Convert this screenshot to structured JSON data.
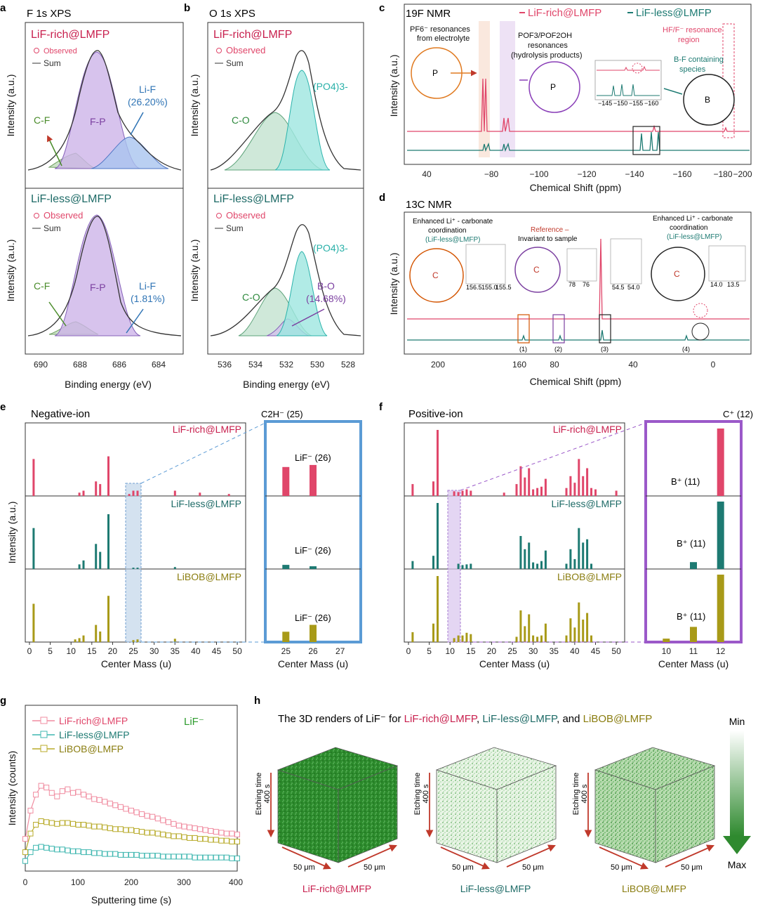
{
  "panels": {
    "a": {
      "letter": "a",
      "title": "F 1s XPS",
      "xlabel": "Binding energy (eV)",
      "ylabel": "Intensity (a.u.)",
      "ticks": [
        "690",
        "688",
        "686",
        "684"
      ]
    },
    "b": {
      "letter": "b",
      "title": "O 1s XPS",
      "xlabel": "Binding energy (eV)",
      "ylabel": "Intensity (a.u.)",
      "ticks": [
        "536",
        "534",
        "532",
        "530",
        "528"
      ]
    },
    "c": {
      "letter": "c",
      "title": "19F NMR",
      "xlabel": "Chemical Shift (ppm)",
      "ylabel": "Intensity (a.u.)",
      "ticks": [
        "40",
        "−80",
        "−100",
        "−120",
        "−140",
        "−160",
        "−180",
        "−200"
      ]
    },
    "d": {
      "letter": "d",
      "title": "13C NMR",
      "xlabel": "Chemical Shift (ppm)",
      "ylabel": "Intensity (a.u.)",
      "ticks": [
        "200",
        "160",
        "80",
        "40",
        "0"
      ]
    },
    "e": {
      "letter": "e",
      "title": "Negative-ion",
      "xlabel": "Center Mass (u)",
      "ylabel": "Intensity (a.u.)",
      "ticks": [
        "0",
        "5",
        "10",
        "15",
        "20",
        "25",
        "30",
        "35",
        "40",
        "45",
        "50"
      ],
      "zoom_ticks": [
        "25",
        "26",
        "27"
      ]
    },
    "f": {
      "letter": "f",
      "title": "Positive-ion",
      "xlabel": "Center Mass (u)",
      "ylabel": "",
      "ticks": [
        "0",
        "5",
        "10",
        "15",
        "20",
        "25",
        "30",
        "35",
        "40",
        "45",
        "50"
      ],
      "zoom_ticks": [
        "10",
        "11",
        "12"
      ]
    },
    "g": {
      "letter": "g",
      "xlabel": "Sputtering time (s)",
      "ylabel": "Intensity (counts)",
      "ticks": [
        "0",
        "100",
        "200",
        "300",
        "400"
      ],
      "tag": "LiF⁻"
    },
    "h": {
      "letter": "h",
      "title_prefix": "The 3D renders of LiF⁻ for ",
      "sep1": ", ",
      "sep2": ", and ",
      "etching": "Etching time",
      "etch_time": "400 s",
      "size": "50 μm",
      "min": "Min",
      "max": "Max"
    }
  },
  "samples": {
    "rich": "LiF-rich@LMFP",
    "less": "LiF-less@LMFP",
    "bob": "LiBOB@LMFP"
  },
  "legend": {
    "observed": "Observed",
    "sum": "Sum"
  },
  "colors": {
    "rich": "#e0466a",
    "less": "#1d7a72",
    "bob": "#a89a18",
    "violet": "#7b3fa0",
    "blue": "#2f74b5",
    "green": "#4a8c2a",
    "zoomE": "#5b9bd5",
    "zoomF": "#9b59c9"
  },
  "xps_labels": {
    "cf": "C-F",
    "fp": "F-P",
    "lif": "Li-F",
    "lif_rich": "(26.20%)",
    "lif_less": "(1.81%)",
    "co": "C-O",
    "po4": "(PO4)3-",
    "bo": "B-O",
    "bo_val": "(14.68%)"
  },
  "nmr_f": {
    "pf6": "PF6⁻ resonances",
    "pf6b": "from electrolyte",
    "pof": "POF3/POF2OH",
    "pofb": "resonances",
    "pofc": "(hydrolysis products)",
    "hf": "HF/F⁻ resonance",
    "hfb": "region",
    "bf": "B-F containing",
    "bfb": "species",
    "inset_ticks": [
      "−145",
      "−150",
      "−155",
      "−160"
    ]
  },
  "nmr_c": {
    "enh1": "Enhanced Li⁺ - carbonate",
    "enh2": "coordination",
    "enh3": "(LiF-less@LMFP)",
    "ref1": "Reference –",
    "ref2": "Invariant to sample",
    "p1": "(1)",
    "p2": "(2)",
    "p3": "(3)",
    "p4": "(4)",
    "ins1": [
      "156.5",
      "155.0",
      "155.5"
    ],
    "ins2": [
      "78",
      "76"
    ],
    "ins3": [
      "54.5",
      "54.0"
    ],
    "ins4": [
      "14.0",
      "13.5"
    ]
  },
  "tof": {
    "c2h": "C2H⁻ (25)",
    "lif26": "LiF⁻ (26)",
    "cplus": "C⁺ (12)",
    "bplus": "B⁺ (11)"
  },
  "chart_data": [
    {
      "panel": "e",
      "type": "bar",
      "title": "Negative-ion",
      "xlabel": "Center Mass (u)",
      "ylabel": "Intensity (a.u.)",
      "xlim": [
        0,
        51
      ],
      "series": [
        {
          "name": "LiF-rich@LMFP",
          "x": [
            1,
            12,
            13,
            16,
            17,
            19,
            24,
            25,
            26,
            35,
            41,
            48
          ],
          "values": [
            0.56,
            0.05,
            0.08,
            0.22,
            0.18,
            0.6,
            0.03,
            0.08,
            0.08,
            0.08,
            0.05,
            0.03
          ]
        },
        {
          "name": "LiF-less@LMFP",
          "x": [
            1,
            12,
            13,
            16,
            17,
            19,
            25,
            26,
            35
          ],
          "values": [
            0.62,
            0.07,
            0.13,
            0.38,
            0.26,
            0.83,
            0.02,
            0.02,
            0.03
          ]
        },
        {
          "name": "LiBOB@LMFP",
          "x": [
            1,
            11,
            12,
            13,
            16,
            17,
            19,
            25,
            26,
            35
          ],
          "values": [
            0.58,
            0.04,
            0.06,
            0.1,
            0.26,
            0.16,
            0.7,
            0.03,
            0.04,
            0.05
          ]
        }
      ]
    },
    {
      "panel": "e-zoom",
      "type": "bar",
      "categories": [
        "25",
        "26"
      ],
      "series": [
        {
          "name": "LiF-rich@LMFP",
          "values": [
            0.42,
            0.45
          ]
        },
        {
          "name": "LiF-less@LMFP",
          "values": [
            0.06,
            0.04
          ]
        },
        {
          "name": "LiBOB@LMFP",
          "values": [
            0.15,
            0.25
          ]
        }
      ]
    },
    {
      "panel": "f",
      "type": "bar",
      "title": "Positive-ion",
      "xlabel": "Center Mass (u)",
      "xlim": [
        0,
        51
      ],
      "series": [
        {
          "name": "LiF-rich@LMFP",
          "x": [
            1,
            6,
            7,
            11,
            12,
            13,
            14,
            15,
            23,
            26,
            27,
            28,
            29,
            30,
            31,
            32,
            33,
            38,
            39,
            40,
            41,
            42,
            43,
            44,
            45,
            50
          ],
          "values": [
            0.18,
            0.22,
            1.0,
            0.07,
            0.06,
            0.08,
            0.1,
            0.08,
            0.05,
            0.18,
            0.45,
            0.28,
            0.42,
            0.1,
            0.12,
            0.14,
            0.26,
            0.12,
            0.3,
            0.2,
            0.56,
            0.3,
            0.42,
            0.12,
            0.1,
            0.08
          ]
        },
        {
          "name": "LiF-less@LMFP",
          "x": [
            1,
            6,
            7,
            12,
            13,
            14,
            15,
            27,
            28,
            29,
            30,
            31,
            32,
            33,
            38,
            39,
            40,
            41,
            42,
            43,
            44
          ],
          "values": [
            0.12,
            0.2,
            1.0,
            0.08,
            0.06,
            0.07,
            0.08,
            0.5,
            0.3,
            0.4,
            0.1,
            0.08,
            0.12,
            0.28,
            0.08,
            0.3,
            0.15,
            0.62,
            0.4,
            0.45,
            0.08
          ]
        },
        {
          "name": "LiBOB@LMFP",
          "x": [
            1,
            6,
            7,
            11,
            12,
            13,
            14,
            15,
            26,
            27,
            28,
            29,
            30,
            31,
            32,
            33,
            38,
            39,
            40,
            41,
            42,
            43,
            44
          ],
          "values": [
            0.15,
            0.28,
            1.0,
            0.06,
            0.1,
            0.1,
            0.14,
            0.12,
            0.08,
            0.48,
            0.24,
            0.42,
            0.1,
            0.08,
            0.1,
            0.28,
            0.1,
            0.36,
            0.22,
            0.6,
            0.34,
            0.44,
            0.1
          ]
        }
      ]
    },
    {
      "panel": "f-zoom",
      "type": "bar",
      "categories": [
        "10",
        "11",
        "12"
      ],
      "series": [
        {
          "name": "LiF-rich@LMFP",
          "values": [
            0,
            0,
            0.98
          ]
        },
        {
          "name": "LiF-less@LMFP",
          "values": [
            0,
            0.1,
            0.98
          ]
        },
        {
          "name": "LiBOB@LMFP",
          "values": [
            0.05,
            0.22,
            0.98
          ]
        }
      ]
    },
    {
      "panel": "g",
      "type": "scatter",
      "xlabel": "Sputtering time (s)",
      "ylabel": "Intensity (counts)",
      "xlim": [
        0,
        400
      ],
      "x": [
        0,
        10,
        20,
        30,
        40,
        50,
        60,
        70,
        80,
        90,
        100,
        110,
        120,
        130,
        140,
        150,
        160,
        170,
        180,
        190,
        200,
        210,
        220,
        230,
        240,
        250,
        260,
        270,
        280,
        290,
        300,
        310,
        320,
        330,
        340,
        350,
        360,
        370,
        380,
        390,
        400
      ],
      "series": [
        {
          "name": "LiF-rich@LMFP",
          "values": [
            0.3,
            0.62,
            0.8,
            0.9,
            0.88,
            0.82,
            0.78,
            0.84,
            0.86,
            0.82,
            0.83,
            0.8,
            0.78,
            0.75,
            0.74,
            0.72,
            0.7,
            0.68,
            0.66,
            0.64,
            0.62,
            0.6,
            0.58,
            0.56,
            0.55,
            0.53,
            0.51,
            0.49,
            0.47,
            0.45,
            0.44,
            0.43,
            0.42,
            0.41,
            0.4,
            0.39,
            0.38,
            0.37,
            0.36,
            0.36,
            0.35
          ]
        },
        {
          "name": "LiF-less@LMFP",
          "values": [
            0.05,
            0.15,
            0.2,
            0.21,
            0.2,
            0.19,
            0.18,
            0.18,
            0.17,
            0.16,
            0.16,
            0.15,
            0.15,
            0.14,
            0.14,
            0.13,
            0.13,
            0.13,
            0.12,
            0.12,
            0.12,
            0.12,
            0.11,
            0.11,
            0.11,
            0.11,
            0.1,
            0.1,
            0.1,
            0.1,
            0.1,
            0.1,
            0.09,
            0.09,
            0.09,
            0.09,
            0.09,
            0.09,
            0.09,
            0.08,
            0.08
          ]
        },
        {
          "name": "LiBOB@LMFP",
          "values": [
            0.15,
            0.36,
            0.46,
            0.5,
            0.49,
            0.48,
            0.47,
            0.48,
            0.48,
            0.47,
            0.46,
            0.46,
            0.45,
            0.44,
            0.44,
            0.43,
            0.42,
            0.41,
            0.41,
            0.4,
            0.4,
            0.39,
            0.38,
            0.37,
            0.37,
            0.36,
            0.35,
            0.34,
            0.33,
            0.33,
            0.32,
            0.31,
            0.31,
            0.3,
            0.3,
            0.29,
            0.29,
            0.28,
            0.28,
            0.27,
            0.27
          ]
        }
      ]
    }
  ]
}
